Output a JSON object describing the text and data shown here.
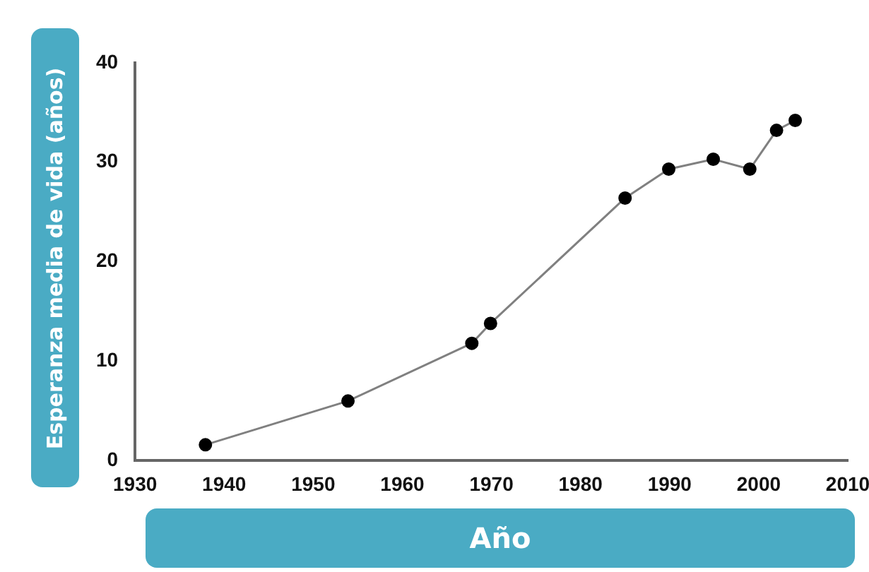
{
  "chart_data": {
    "type": "line",
    "xlabel": "Año",
    "ylabel": "Esperanza media de vida (años)",
    "x": [
      1937.9,
      1953.9,
      1967.8,
      1969.9,
      1985.0,
      1989.9,
      1994.9,
      1999.0,
      2002.0,
      2004.1
    ],
    "series": [
      {
        "color": "#808080",
        "values": [
          1.6,
          6.0,
          11.8,
          13.8,
          26.4,
          29.3,
          30.3,
          29.3,
          33.2,
          34.2
        ]
      }
    ],
    "xlim": [
      1930,
      2010
    ],
    "xticks": [
      1930,
      1940,
      1950,
      1960,
      1970,
      1980,
      1990,
      2000,
      2010
    ],
    "ylim": [
      0,
      40
    ],
    "yticks": [
      0,
      10,
      20,
      30,
      40
    ],
    "grid": false,
    "legend": false,
    "marker": "circle",
    "line_style": "solid"
  }
}
